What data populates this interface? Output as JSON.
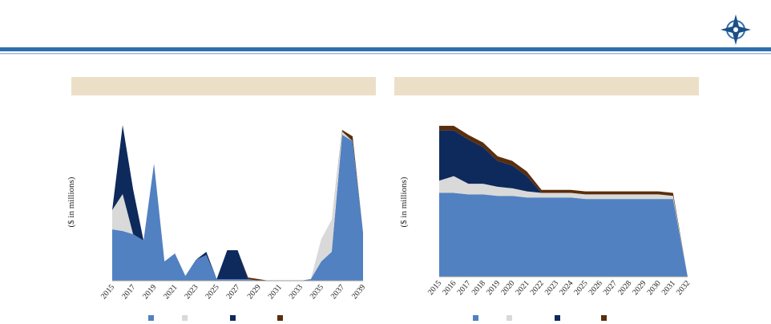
{
  "chart_data": [
    {
      "type": "stacked_area",
      "categories": [
        "2015",
        null,
        "2017",
        null,
        "2019",
        null,
        "2021",
        null,
        "2023",
        null,
        "2025",
        null,
        "2027",
        null,
        "2029",
        null,
        "2031",
        null,
        "2033",
        null,
        "2035",
        null,
        "2037",
        null,
        "2039"
      ],
      "ylabel": "($ in millions)",
      "ylim": [
        0,
        100
      ],
      "series": [
        {
          "color": "#5181c1",
          "values": [
            32,
            31,
            29,
            25,
            73,
            12,
            17,
            3,
            13,
            16,
            1,
            1,
            1,
            1,
            0,
            0,
            0,
            0,
            0,
            1,
            12,
            18,
            91,
            87,
            30
          ]
        },
        {
          "color": "#d9d9d9",
          "values": [
            12,
            23,
            0,
            0,
            0,
            0,
            0,
            0,
            0,
            0,
            0,
            0,
            0,
            0,
            0,
            0,
            0,
            0,
            0,
            0,
            14,
            20,
            2,
            0,
            0
          ]
        },
        {
          "color": "#0e2a5c",
          "values": [
            0,
            43,
            28,
            0,
            0,
            0,
            0,
            0,
            0,
            2,
            0,
            18,
            18,
            0,
            0,
            0,
            0,
            0,
            0,
            0,
            0,
            0,
            0,
            0,
            0
          ]
        },
        {
          "color": "#5a2e0d",
          "values": [
            0,
            0,
            0,
            0,
            0,
            0,
            0,
            0,
            0,
            0,
            0,
            0,
            0,
            1,
            1,
            0,
            0,
            0,
            0,
            0,
            0,
            0,
            1,
            3,
            0
          ]
        }
      ]
    },
    {
      "type": "stacked_area",
      "categories": [
        "2015",
        "2016",
        "2017",
        "2018",
        "2019",
        "2020",
        "2021",
        "2022",
        "2023",
        "2024",
        "2025",
        "2026",
        "2027",
        "2028",
        "2029",
        "2030",
        "2031",
        "2032"
      ],
      "ylabel": "($ in millions)",
      "ylim": [
        0,
        100
      ],
      "series": [
        {
          "color": "#5181c1",
          "values": [
            55,
            55,
            54,
            54,
            53,
            53,
            52,
            52,
            52,
            52,
            51,
            51,
            51,
            51,
            51,
            51,
            51,
            0
          ]
        },
        {
          "color": "#d9d9d9",
          "values": [
            8,
            11,
            7,
            7,
            6,
            5,
            4,
            3,
            3,
            3,
            3,
            3,
            3,
            3,
            3,
            3,
            2,
            0
          ]
        },
        {
          "color": "#0e2a5c",
          "values": [
            33,
            30,
            29,
            24,
            17,
            15,
            10,
            0,
            0,
            0,
            0,
            0,
            0,
            0,
            0,
            0,
            0,
            0
          ]
        },
        {
          "color": "#5a2e0d",
          "values": [
            3,
            3,
            3,
            3,
            3,
            3,
            3,
            2,
            2,
            2,
            2,
            2,
            2,
            2,
            2,
            2,
            2,
            0
          ]
        }
      ]
    }
  ]
}
